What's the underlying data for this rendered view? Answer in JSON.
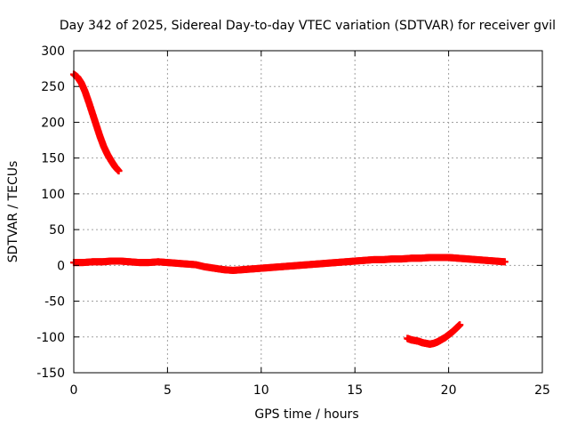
{
  "chart_data": {
    "type": "scatter",
    "title": "Day 342 of 2025, Sidereal Day-to-day VTEC variation (SDTVAR) for receiver gvil",
    "xlabel": "GPS time / hours",
    "ylabel": "SDTVAR / TECUs",
    "xlim": [
      0,
      25
    ],
    "ylim": [
      -150,
      300
    ],
    "xticks": [
      0,
      5,
      10,
      15,
      20,
      25
    ],
    "yticks": [
      -150,
      -100,
      -50,
      0,
      50,
      100,
      150,
      200,
      250,
      300
    ],
    "xtick_labels": [
      "0",
      "5",
      "10",
      "15",
      "20",
      "25"
    ],
    "ytick_labels": [
      "-150",
      "-100",
      "-50",
      "0",
      "50",
      "100",
      "150",
      "200",
      "250",
      "300"
    ],
    "grid": true,
    "marker": "plus",
    "color": "#ff0000",
    "series": [
      {
        "name": "segment-1",
        "x": [
          0.0,
          0.2,
          0.4,
          0.6,
          0.8,
          1.0,
          1.2,
          1.4,
          1.6,
          1.8,
          2.0,
          2.2,
          2.4
        ],
        "y": [
          267,
          263,
          255,
          243,
          228,
          212,
          196,
          180,
          166,
          155,
          146,
          138,
          132
        ]
      },
      {
        "name": "segment-2",
        "x": [
          0.0,
          0.5,
          1.0,
          1.5,
          2.0,
          2.5,
          3.0,
          3.5,
          4.0,
          4.5,
          5.0,
          5.5,
          6.0,
          6.5,
          7.0,
          7.5,
          8.0,
          8.5,
          9.0,
          9.5,
          10.0,
          10.5,
          11.0,
          11.5,
          12.0,
          12.5,
          13.0,
          13.5,
          14.0,
          14.5,
          15.0,
          15.5,
          16.0,
          16.5,
          17.0,
          17.5,
          18.0,
          18.5,
          19.0,
          19.5,
          20.0,
          20.5,
          21.0,
          21.5,
          22.0,
          22.5,
          23.0
        ],
        "y": [
          4,
          4,
          5,
          5,
          6,
          6,
          5,
          4,
          4,
          5,
          4,
          3,
          2,
          1,
          -2,
          -4,
          -6,
          -7,
          -6,
          -5,
          -4,
          -3,
          -2,
          -1,
          0,
          1,
          2,
          3,
          4,
          5,
          6,
          7,
          8,
          8,
          9,
          9,
          10,
          10,
          11,
          11,
          11,
          10,
          9,
          8,
          7,
          6,
          5
        ]
      },
      {
        "name": "segment-3",
        "x": [
          17.8,
          18.0,
          18.2,
          18.4,
          18.6,
          18.8,
          19.0,
          19.2,
          19.4,
          19.6,
          19.8,
          20.0,
          20.2,
          20.4,
          20.6
        ],
        "y": [
          -102,
          -104,
          -105,
          -106,
          -108,
          -109,
          -110,
          -109,
          -107,
          -104,
          -101,
          -97,
          -93,
          -88,
          -83
        ]
      }
    ]
  }
}
